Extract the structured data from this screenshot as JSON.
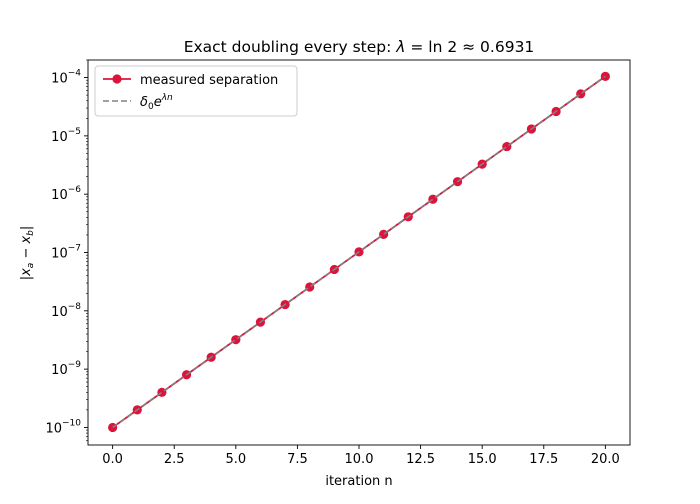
{
  "chart_data": {
    "type": "line",
    "title": "Exact doubling every step: λ = ln 2 ≈ 0.6931",
    "xlabel": "iteration n",
    "ylabel": "|xₐ − x_b|",
    "yscale": "log",
    "xlim": [
      -1.0,
      21.0
    ],
    "ylim": [
      5e-11,
      0.0002
    ],
    "xticks": [
      0.0,
      2.5,
      5.0,
      7.5,
      10.0,
      12.5,
      15.0,
      17.5,
      20.0
    ],
    "xtick_labels": [
      "0.0",
      "2.5",
      "5.0",
      "7.5",
      "10.0",
      "12.5",
      "15.0",
      "17.5",
      "20.0"
    ],
    "ytick_exponents": [
      -10,
      -9,
      -8,
      -7,
      -6,
      -5,
      -4
    ],
    "grid": false,
    "legend_position": "top-left",
    "x": [
      0,
      1,
      2,
      3,
      4,
      5,
      6,
      7,
      8,
      9,
      10,
      11,
      12,
      13,
      14,
      15,
      16,
      17,
      18,
      19,
      20
    ],
    "series": [
      {
        "name": "measured separation",
        "style": "line-with-markers",
        "color": "#dc143c",
        "values": [
          1e-10,
          2e-10,
          4e-10,
          8e-10,
          1.6e-09,
          3.2e-09,
          6.4e-09,
          1.28e-08,
          2.56e-08,
          5.12e-08,
          1.024e-07,
          2.048e-07,
          4.096e-07,
          8.192e-07,
          1.6384e-06,
          3.2768e-06,
          6.5536e-06,
          1.31072e-05,
          2.62144e-05,
          5.24288e-05,
          0.0001048576
        ]
      },
      {
        "name": "δ₀e^{λn}",
        "style": "dashed",
        "color": "#808080",
        "values": [
          1e-10,
          2e-10,
          4e-10,
          8e-10,
          1.6e-09,
          3.2e-09,
          6.4e-09,
          1.28e-08,
          2.56e-08,
          5.12e-08,
          1.024e-07,
          2.048e-07,
          4.096e-07,
          8.192e-07,
          1.6384e-06,
          3.2768e-06,
          6.5536e-06,
          1.31072e-05,
          2.62144e-05,
          5.24288e-05,
          0.0001048576
        ]
      }
    ]
  }
}
